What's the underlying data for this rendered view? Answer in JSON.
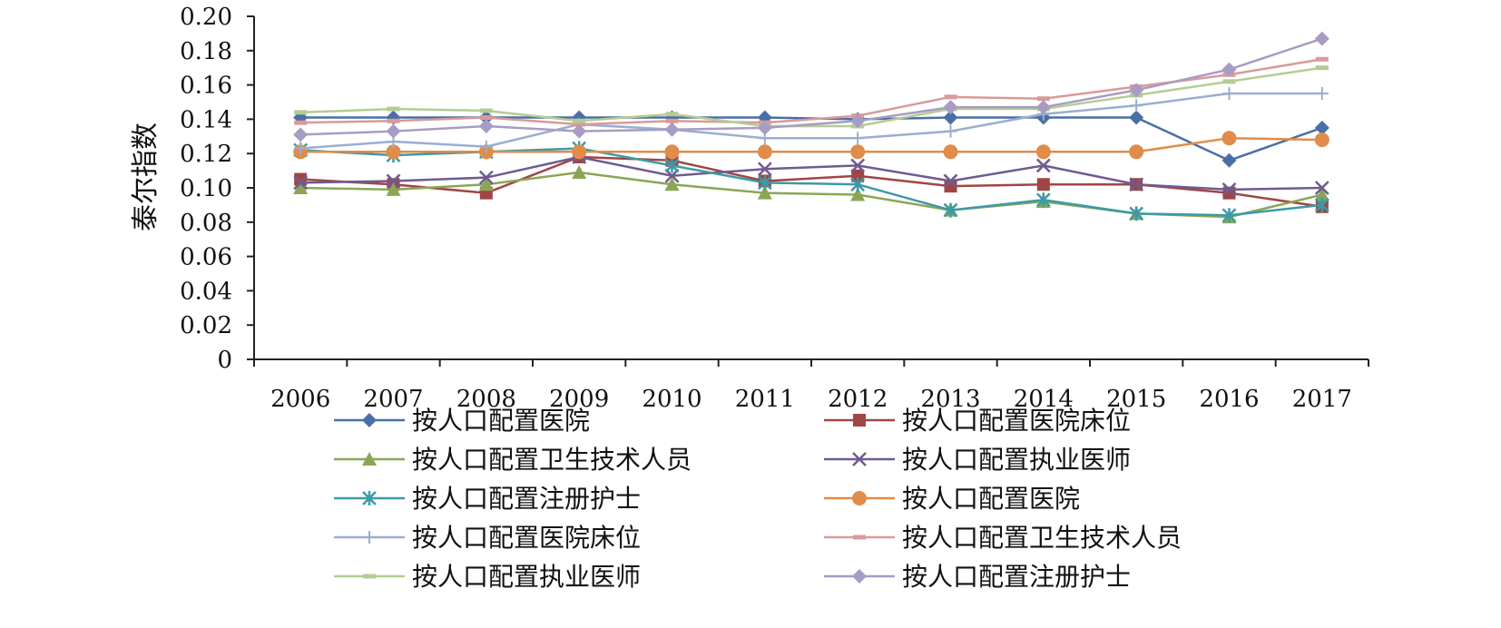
{
  "chart_data": {
    "type": "line",
    "title": "",
    "xlabel": "",
    "ylabel": "泰尔指数",
    "ylim": [
      0,
      0.2
    ],
    "y_ticks": [
      "0",
      "0.02",
      "0.04",
      "0.06",
      "0.08",
      "0.10",
      "0.12",
      "0.14",
      "0.16",
      "0.18",
      "0.20"
    ],
    "grid": false,
    "legend_position": "bottom",
    "categories": [
      "2006",
      "2007",
      "2008",
      "2009",
      "2010",
      "2011",
      "2012",
      "2013",
      "2014",
      "2015",
      "2016",
      "2017"
    ],
    "series": [
      {
        "name": "按人口配置医院",
        "color": "#4a6fa5",
        "marker": "diamond",
        "values": [
          0.141,
          0.141,
          0.141,
          0.141,
          0.141,
          0.141,
          0.14,
          0.141,
          0.141,
          0.141,
          0.116,
          0.135
        ]
      },
      {
        "name": "按人口配置医院床位",
        "color": "#a04545",
        "marker": "square",
        "values": [
          0.105,
          0.102,
          0.097,
          0.118,
          0.116,
          0.104,
          0.107,
          0.101,
          0.102,
          0.102,
          0.097,
          0.089
        ]
      },
      {
        "name": "按人口配置卫生技术人员",
        "color": "#8aa655",
        "marker": "triangle",
        "values": [
          0.1,
          0.099,
          0.102,
          0.109,
          0.102,
          0.097,
          0.096,
          0.087,
          0.092,
          0.085,
          0.083,
          0.096
        ]
      },
      {
        "name": "按人口配置执业医师",
        "color": "#6f5b8f",
        "marker": "x",
        "values": [
          0.103,
          0.104,
          0.106,
          0.118,
          0.107,
          0.111,
          0.113,
          0.104,
          0.113,
          0.102,
          0.099,
          0.1
        ]
      },
      {
        "name": "按人口配置注册护士",
        "color": "#3c9aa6",
        "marker": "asterisk",
        "values": [
          0.122,
          0.119,
          0.121,
          0.123,
          0.113,
          0.103,
          0.102,
          0.087,
          0.093,
          0.085,
          0.084,
          0.09
        ]
      },
      {
        "name": "按人口配置医院",
        "color": "#e08c4a",
        "marker": "circle",
        "values": [
          0.121,
          0.121,
          0.121,
          0.121,
          0.121,
          0.121,
          0.121,
          0.121,
          0.121,
          0.121,
          0.129,
          0.128
        ]
      },
      {
        "name": "按人口配置医院床位",
        "color": "#9aaed0",
        "marker": "plus",
        "values": [
          0.123,
          0.127,
          0.124,
          0.137,
          0.134,
          0.129,
          0.129,
          0.133,
          0.143,
          0.148,
          0.155,
          0.155
        ]
      },
      {
        "name": "按人口配置卫生技术人员",
        "color": "#d99a9a",
        "marker": "dash",
        "values": [
          0.138,
          0.139,
          0.141,
          0.137,
          0.139,
          0.138,
          0.142,
          0.153,
          0.152,
          0.159,
          0.166,
          0.175
        ]
      },
      {
        "name": "按人口配置执业医师",
        "color": "#b4cc93",
        "marker": "dash",
        "values": [
          0.144,
          0.146,
          0.145,
          0.139,
          0.143,
          0.136,
          0.136,
          0.146,
          0.146,
          0.154,
          0.162,
          0.17
        ]
      },
      {
        "name": "按人口配置注册护士",
        "color": "#a89cc4",
        "marker": "diamond",
        "values": [
          0.131,
          0.133,
          0.136,
          0.133,
          0.134,
          0.135,
          0.139,
          0.147,
          0.147,
          0.157,
          0.169,
          0.187
        ]
      }
    ]
  }
}
